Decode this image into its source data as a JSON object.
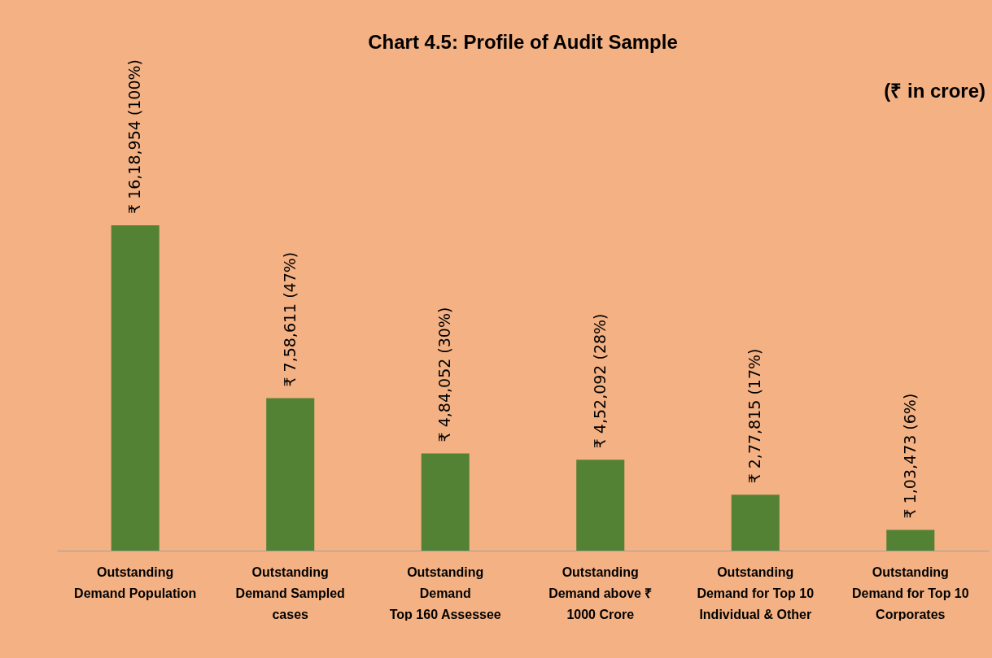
{
  "chart_data": {
    "type": "bar",
    "title": "Chart 4.5: Profile of Audit Sample",
    "annotations": [
      "(₹ in crore)"
    ],
    "categories": [
      "Outstanding\nDemand Population",
      "Outstanding\nDemand Sampled\ncases",
      "Outstanding\nDemand\nTop 160 Assessee",
      "Outstanding\nDemand  above ₹\n1000 Crore",
      "Outstanding\nDemand for Top 10\nIndividual & Other",
      "Outstanding\nDemand for Top 10\nCorporates"
    ],
    "values": [
      1618954,
      758611,
      484052,
      452092,
      277815,
      103473
    ],
    "value_labels": [
      "₹ 16,18,954 (100%)",
      "₹ 7,58,611 (47%)",
      "₹ 4,84,052 (30%)",
      "₹ 4,52,092 (28%)",
      "₹ 2,77,815 (17%)",
      "₹ 1,03,473 (6%)"
    ],
    "color": "#548235",
    "grid": false
  }
}
